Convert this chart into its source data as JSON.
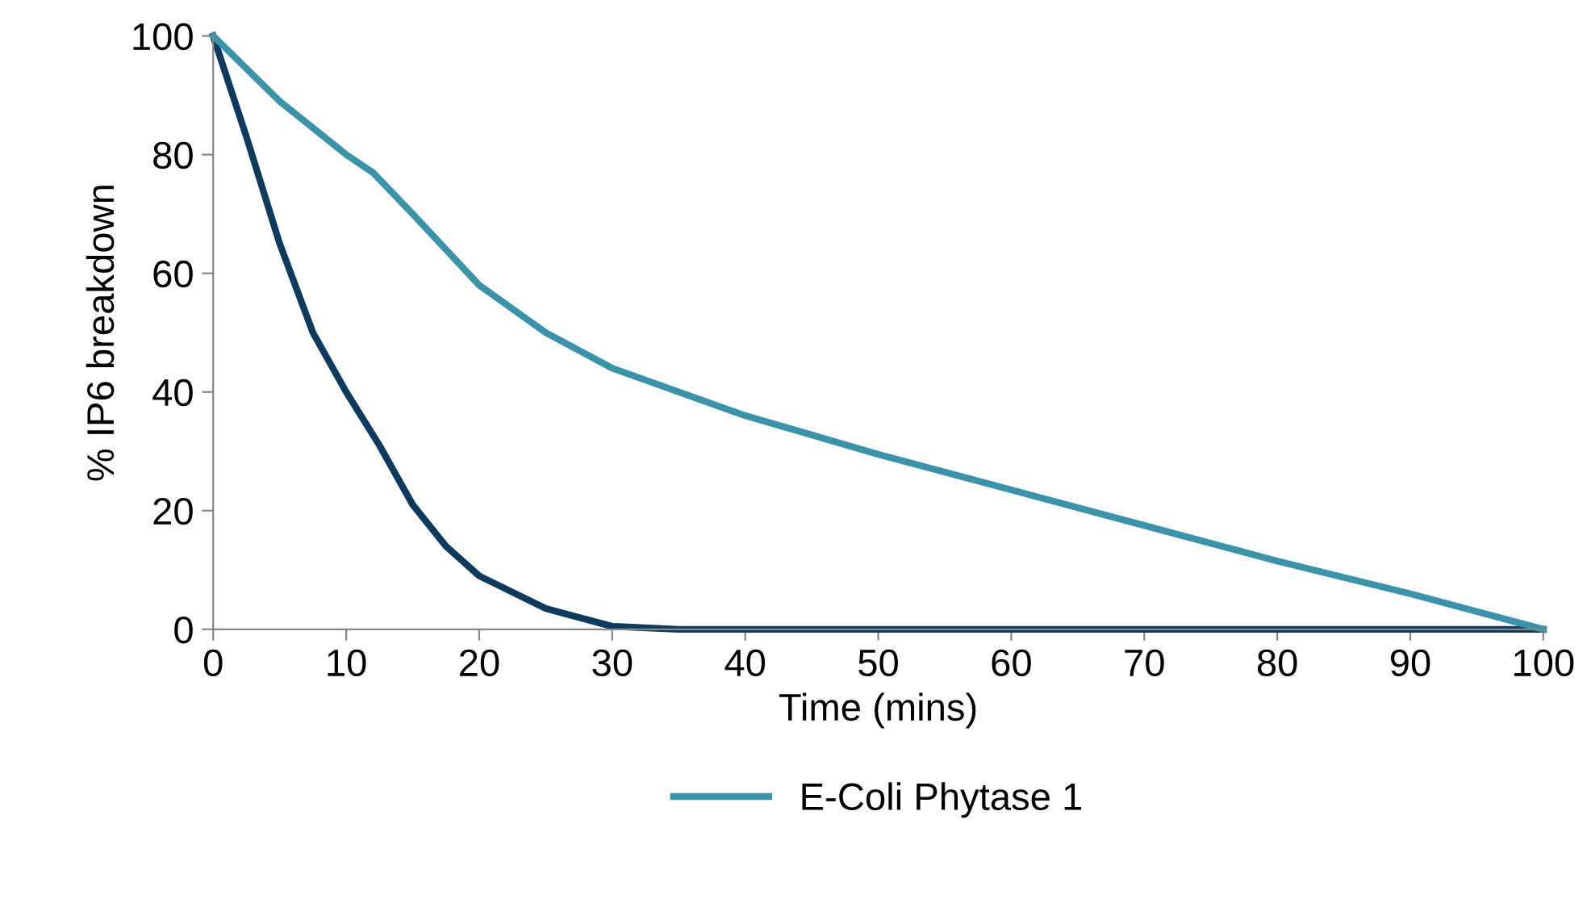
{
  "chart_data": {
    "type": "line",
    "xlabel": "Time (mins)",
    "ylabel": "% IP6 breakdown",
    "xlim": [
      0,
      100
    ],
    "xticks": [
      0,
      10,
      20,
      30,
      40,
      50,
      60,
      70,
      80,
      90,
      100
    ],
    "ylim": [
      0,
      100
    ],
    "yticks": [
      0,
      20,
      40,
      60,
      80,
      100
    ],
    "grid": false,
    "legend": "bottom",
    "marker": "none",
    "line_style": "solid",
    "series": [
      {
        "color": "#0e3a5e",
        "x": [
          0,
          2.5,
          5,
          7.5,
          10,
          12.5,
          15,
          17.5,
          20,
          25,
          30,
          35,
          40,
          50,
          60,
          70,
          80,
          90,
          100
        ],
        "values": [
          100,
          83,
          65,
          50,
          40,
          31,
          21,
          14,
          9,
          3.5,
          0.5,
          0,
          0,
          0,
          0,
          0,
          0,
          0,
          0
        ]
      },
      {
        "name": "E-Coli Phytase 1",
        "color": "#3a93a8",
        "x": [
          0,
          5,
          10,
          12,
          15,
          20,
          25,
          30,
          40,
          50,
          60,
          70,
          80,
          90,
          100
        ],
        "values": [
          100,
          89,
          80,
          77,
          70,
          58,
          50,
          44,
          36,
          29.5,
          23.5,
          17.5,
          11.5,
          6,
          0
        ]
      }
    ]
  }
}
